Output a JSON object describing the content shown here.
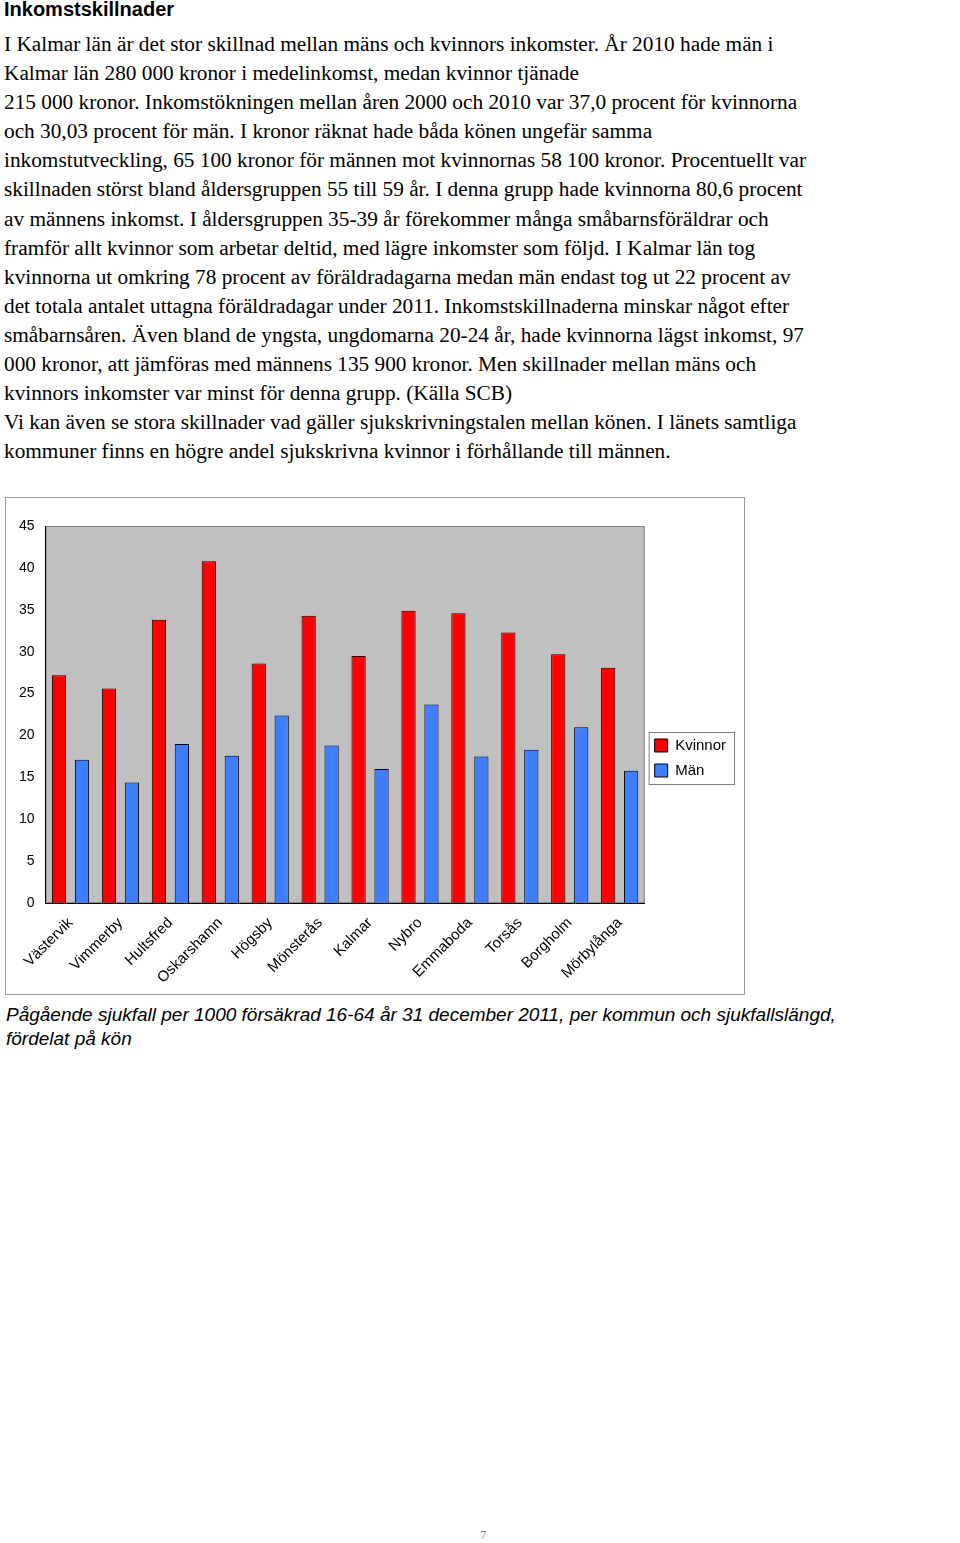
{
  "heading": "Inkomstskillnader",
  "body_lines": [
    "I Kalmar län är det stor skillnad mellan mäns och kvinnors inkomster. År 2010 hade män i",
    "Kalmar län 280 000 kronor i medelinkomst, medan kvinnor tjänade",
    "215 000 kronor. Inkomstökningen mellan åren 2000 och 2010 var 37,0 procent för kvinnorna",
    "och 30,03 procent för män. I kronor räknat hade båda könen ungefär samma",
    "inkomstutveckling, 65 100 kronor för männen mot kvinnornas 58 100 kronor. Procentuellt var",
    "skillnaden störst bland åldersgruppen 55 till 59 år. I denna grupp hade kvinnorna 80,6 procent",
    "av männens inkomst. I åldersgruppen 35-39 år förekommer många småbarnsföräldrar och",
    "framför allt kvinnor som arbetar deltid, med lägre inkomster som följd. I Kalmar län tog",
    "kvinnorna ut omkring 78 procent av föräldradagarna medan män endast tog ut 22 procent av",
    "det totala antalet uttagna föräldradagar under 2011. Inkomstskillnaderna minskar något efter",
    "småbarnsåren. Även bland de yngsta, ungdomarna 20-24 år, hade kvinnorna lägst inkomst, 97",
    "000 kronor, att jämföras med männens 135 900 kronor. Men skillnader mellan mäns och",
    "kvinnors inkomster var minst för denna grupp. (Källa SCB)",
    "Vi kan även se stora skillnader vad gäller sjukskrivningstalen mellan könen. I länets samtliga",
    "kommuner finns en högre andel sjukskrivna kvinnor i förhållande till männen."
  ],
  "chart_data": {
    "type": "bar",
    "categories": [
      "Västervik",
      "Vimmerby",
      "Hultsfred",
      "Oskarshamn",
      "Högsby",
      "Mönsterås",
      "Kalmar",
      "Nybro",
      "Emmaboda",
      "Torsås",
      "Borgholm",
      "Mörbylånga"
    ],
    "series": [
      {
        "name": "Kvinnor",
        "color": "#ff0000",
        "values": [
          27.2,
          25.6,
          33.8,
          40.8,
          28.6,
          34.3,
          29.5,
          34.9,
          34.6,
          32.3,
          29.7,
          28.1
        ]
      },
      {
        "name": "Män",
        "color": "#3f7fff",
        "values": [
          17.1,
          14.4,
          19.0,
          17.6,
          22.4,
          18.8,
          16.0,
          23.7,
          17.5,
          18.3,
          21.0,
          15.8
        ]
      }
    ],
    "ylim": [
      0,
      45
    ],
    "yticks": [
      0,
      5,
      10,
      15,
      20,
      25,
      30,
      35,
      40,
      45
    ],
    "grid": false,
    "legend": "right"
  },
  "caption_lines": [
    "Pågående sjukfall per 1000 försäkrad 16-64 år 31 december 2011, per kommun och sjukfallslängd,",
    "fördelat på kön"
  ],
  "page_number": "7"
}
